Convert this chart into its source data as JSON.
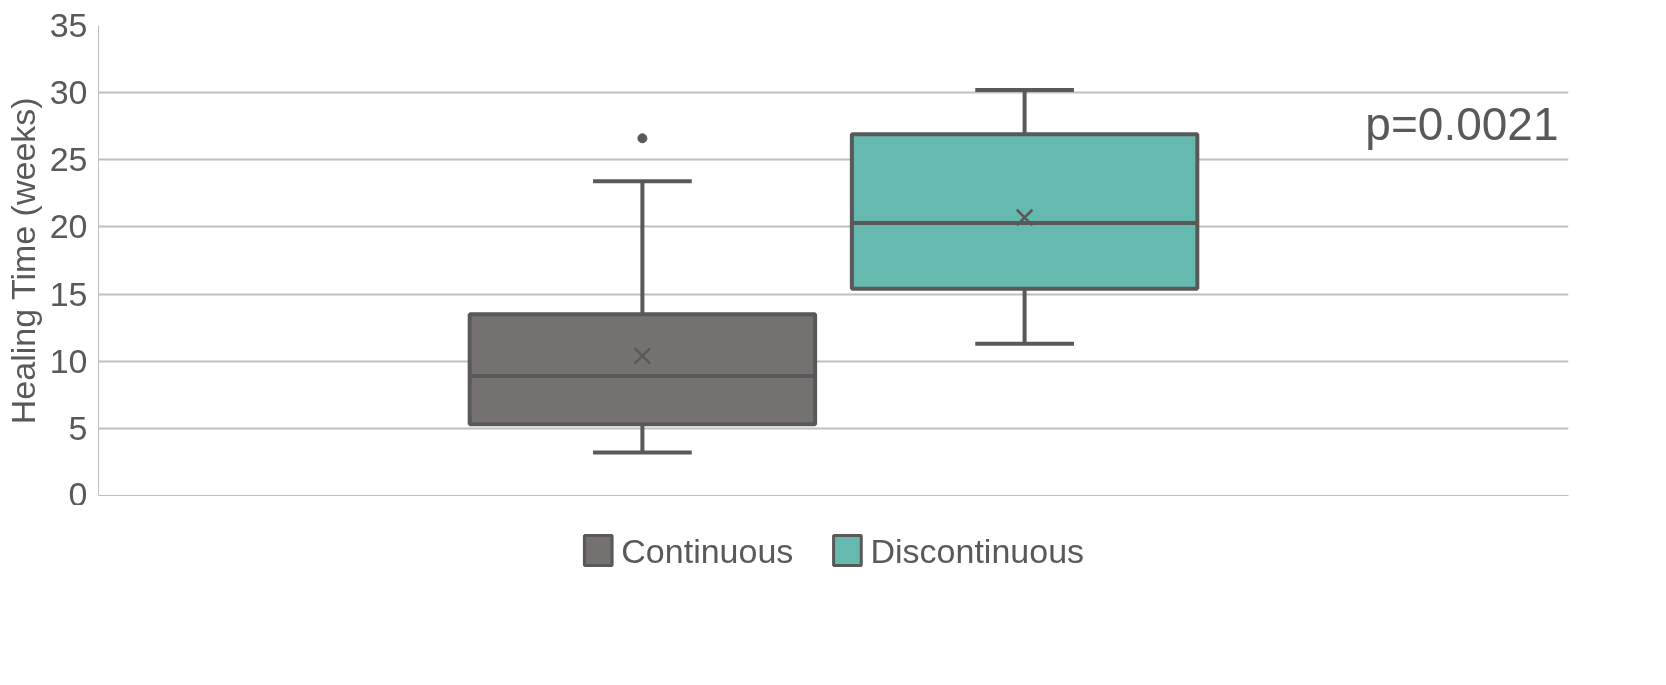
{
  "chart_data": {
    "type": "box",
    "ylabel": "Healing Time (weeks)",
    "categories": [
      null
    ],
    "ylim": [
      0,
      35
    ],
    "yticks": [
      0,
      5,
      10,
      15,
      20,
      25,
      30,
      35
    ],
    "grid": "y",
    "legend": "bottom",
    "tick_labels": "y",
    "annotations": [
      "p=0.0021"
    ],
    "series": [
      {
        "name": "Continuous",
        "color": "#767171",
        "boxes": [
          {
            "low": 3.2,
            "q1": 5.3,
            "median": 8.9,
            "q3": 13.5,
            "high": 23.4,
            "mean": 10.4,
            "outliers": [
              26.6
            ]
          }
        ]
      },
      {
        "name": "Discontinuous",
        "color": "#66b9af",
        "boxes": [
          {
            "low": 11.3,
            "q1": 15.4,
            "median": 20.3,
            "q3": 26.9,
            "high": 30.2,
            "mean": 20.7
          }
        ]
      }
    ]
  }
}
